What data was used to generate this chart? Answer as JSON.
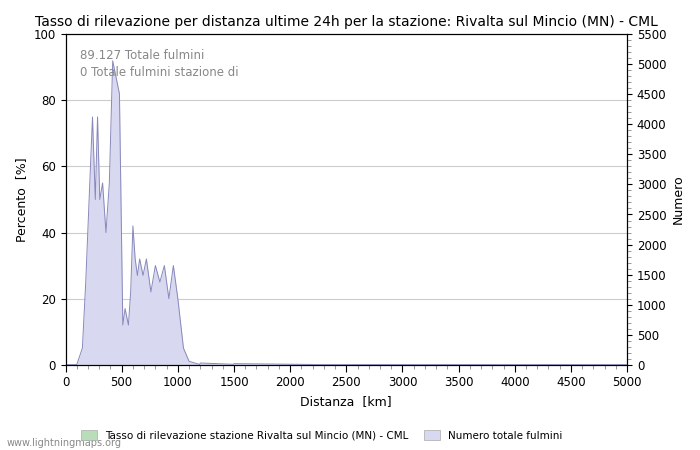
{
  "title": "Tasso di rilevazione per distanza ultime 24h per la stazione: Rivalta sul Mincio (MN) - CML",
  "xlabel": "Distanza  [km]",
  "ylabel_left": "Percento  [%]",
  "ylabel_right": "Numero",
  "annotation_line1": "89.127 Totale fulmini",
  "annotation_line2": "0 Totale fulmini stazione di",
  "legend_label1": "Tasso di rilevazione stazione Rivalta sul Mincio (MN) - CML",
  "legend_label2": "Numero totale fulmini",
  "watermark": "www.lightningmaps.org",
  "xlim": [
    0,
    5000
  ],
  "ylim_left": [
    0,
    100
  ],
  "ylim_right": [
    0,
    5500
  ],
  "yticks_left": [
    0,
    20,
    40,
    60,
    80,
    100
  ],
  "yticks_right": [
    0,
    500,
    1000,
    1500,
    2000,
    2500,
    3000,
    3500,
    4000,
    4500,
    5000,
    5500
  ],
  "xticks": [
    0,
    500,
    1000,
    1500,
    2000,
    2500,
    3000,
    3500,
    4000,
    4500,
    5000
  ],
  "line_color": "#8888bb",
  "fill_color": "#d8d8f0",
  "legend_green": "#b8ddb8",
  "legend_blue": "#d8d8f0",
  "background_color": "#ffffff",
  "grid_color": "#cccccc",
  "title_fontsize": 10,
  "axis_fontsize": 9,
  "tick_fontsize": 8.5,
  "annot_fontsize": 8.5,
  "annot_color": "#888888"
}
